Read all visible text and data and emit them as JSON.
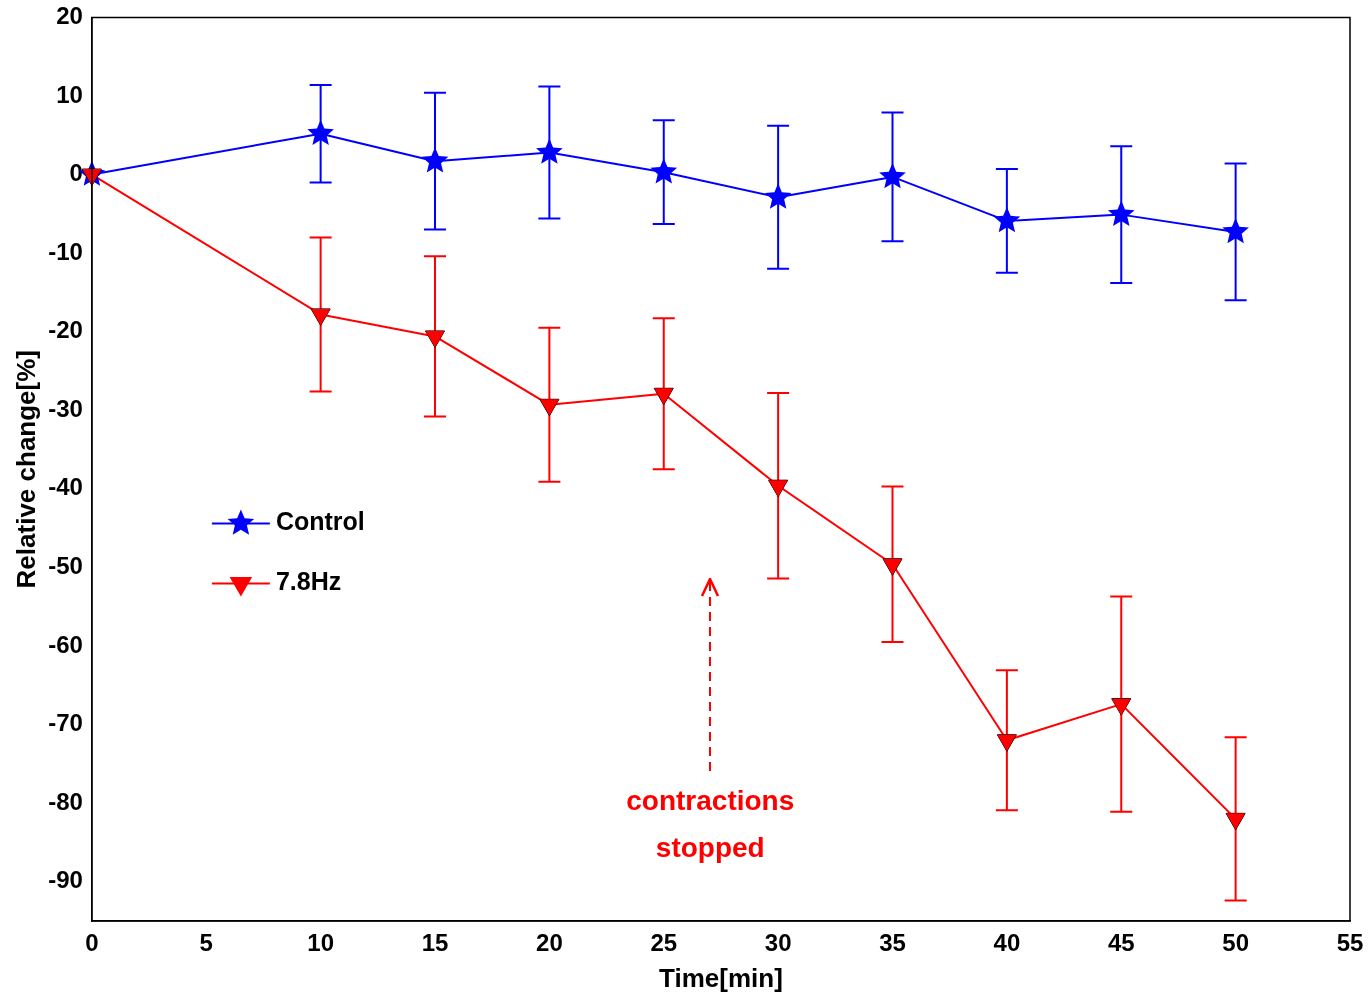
{
  "chart_data": {
    "type": "line",
    "xlabel": "Time[min]",
    "ylabel": "Relative change[%]",
    "x": [
      0,
      10,
      15,
      20,
      25,
      30,
      35,
      40,
      45,
      50
    ],
    "xlim": [
      0,
      55
    ],
    "xticks": [
      0,
      5,
      10,
      15,
      20,
      25,
      30,
      35,
      40,
      45,
      50,
      55
    ],
    "ylim": [
      -95,
      20
    ],
    "yticks": [
      20,
      10,
      0,
      -10,
      -20,
      -30,
      -40,
      -50,
      -60,
      -70,
      -80,
      -90
    ],
    "grid": false,
    "legend": "center left",
    "line_style": "solid",
    "series": [
      {
        "name": "Control",
        "color": "#0000ff",
        "marker": "star",
        "values": [
          0,
          5.2,
          1.7,
          2.8,
          0.3,
          -2.9,
          -0.3,
          -5.9,
          -5.1,
          -7.3
        ],
        "errors": [
          null,
          6.2,
          8.7,
          8.4,
          6.6,
          9.1,
          8.2,
          6.6,
          8.7,
          8.7
        ]
      },
      {
        "name": "7.8Hz",
        "color": "#ff0000",
        "marker": "triangle",
        "values": [
          0,
          -17.8,
          -20.6,
          -29.3,
          -27.9,
          -39.6,
          -49.6,
          -72,
          -67.4,
          -82
        ],
        "errors": [
          null,
          9.8,
          10.2,
          9.8,
          9.6,
          11.8,
          9.9,
          8.9,
          13.7,
          10.4
        ]
      }
    ],
    "annotations": [
      "contractions stopped"
    ]
  }
}
